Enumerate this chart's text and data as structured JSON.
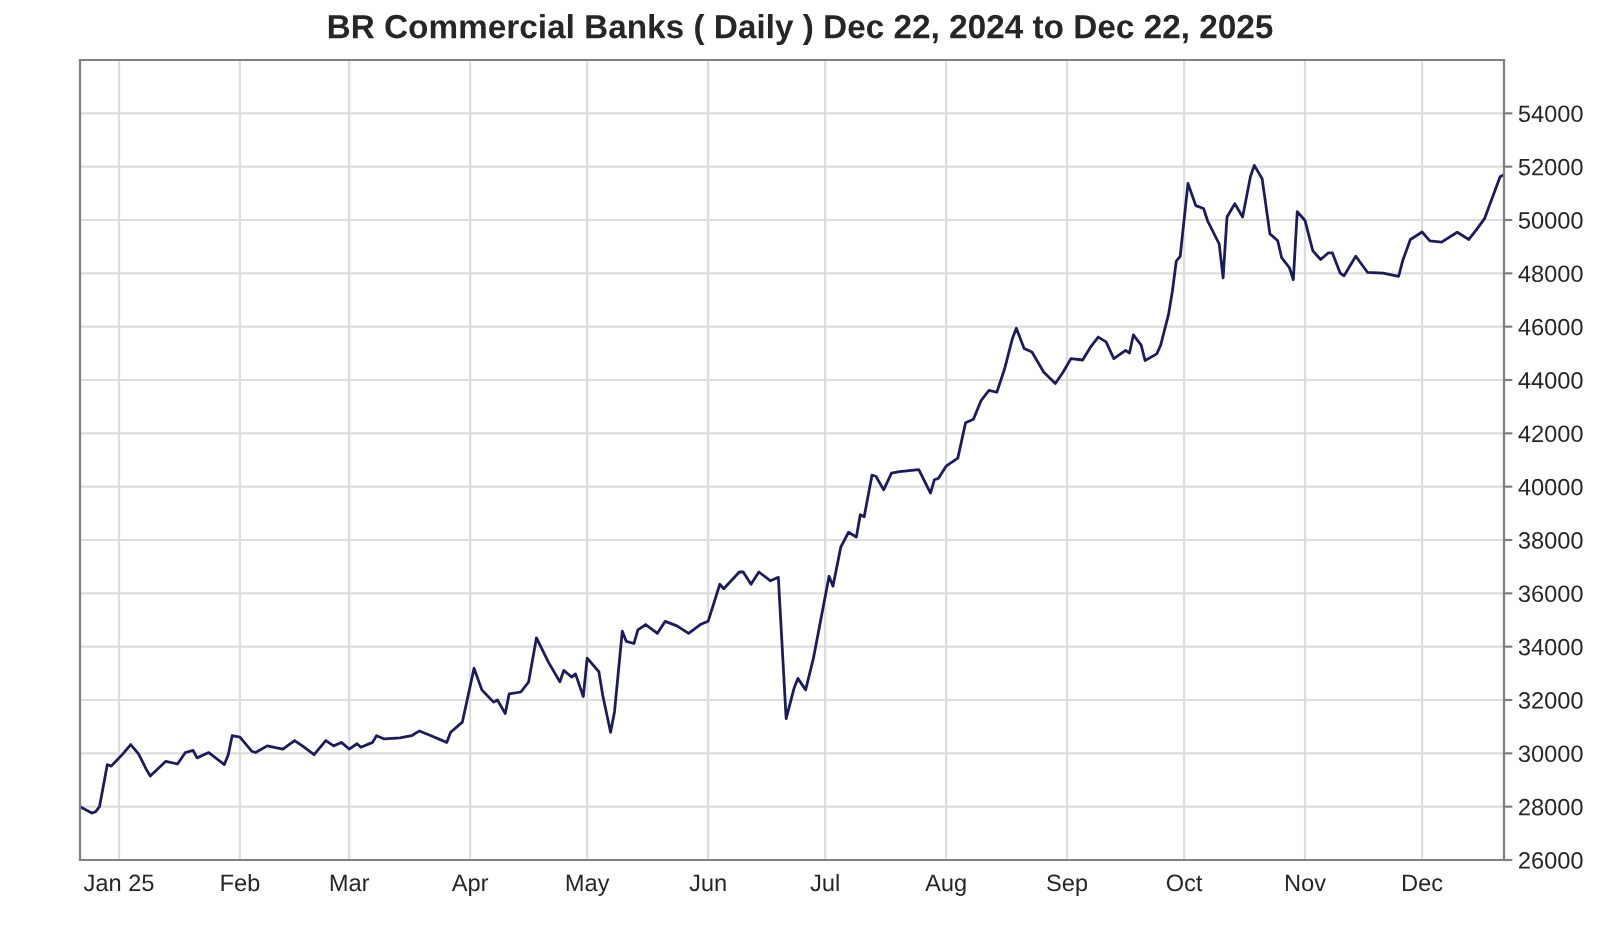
{
  "chart_data": {
    "type": "line",
    "title": "BR Commercial Banks ( Daily ) Dec 22, 2024 to Dec 22, 2025",
    "x": [
      "2024-12-22",
      "2024-12-25",
      "2024-12-26",
      "2024-12-27",
      "2024-12-29",
      "2024-12-30",
      "2025-01-02",
      "2025-01-04",
      "2025-01-06",
      "2025-01-08",
      "2025-01-09",
      "2025-01-13",
      "2025-01-16",
      "2025-01-18",
      "2025-01-20",
      "2025-01-21",
      "2025-01-24",
      "2025-01-28",
      "2025-01-29",
      "2025-01-30",
      "2025-02-01",
      "2025-02-04",
      "2025-02-05",
      "2025-02-08",
      "2025-02-12",
      "2025-02-15",
      "2025-02-17",
      "2025-02-20",
      "2025-02-23",
      "2025-02-25",
      "2025-02-27",
      "2025-03-01",
      "2025-03-03",
      "2025-03-04",
      "2025-03-07",
      "2025-03-08",
      "2025-03-10",
      "2025-03-14",
      "2025-03-17",
      "2025-03-19",
      "2025-03-22",
      "2025-03-26",
      "2025-03-27",
      "2025-03-30",
      "2025-04-02",
      "2025-04-04",
      "2025-04-07",
      "2025-04-08",
      "2025-04-10",
      "2025-04-11",
      "2025-04-14",
      "2025-04-16",
      "2025-04-18",
      "2025-04-21",
      "2025-04-24",
      "2025-04-25",
      "2025-04-27",
      "2025-04-28",
      "2025-04-30",
      "2025-05-01",
      "2025-05-04",
      "2025-05-05",
      "2025-05-07",
      "2025-05-08",
      "2025-05-10",
      "2025-05-11",
      "2025-05-13",
      "2025-05-14",
      "2025-05-16",
      "2025-05-19",
      "2025-05-21",
      "2025-05-24",
      "2025-05-27",
      "2025-05-30",
      "2025-06-01",
      "2025-06-04",
      "2025-06-05",
      "2025-06-09",
      "2025-06-10",
      "2025-06-12",
      "2025-06-14",
      "2025-06-17",
      "2025-06-19",
      "2025-06-21",
      "2025-06-23",
      "2025-06-24",
      "2025-06-26",
      "2025-06-28",
      "2025-07-02",
      "2025-07-03",
      "2025-07-05",
      "2025-07-07",
      "2025-07-09",
      "2025-07-10",
      "2025-07-11",
      "2025-07-13",
      "2025-07-14",
      "2025-07-16",
      "2025-07-18",
      "2025-07-20",
      "2025-07-22",
      "2025-07-25",
      "2025-07-28",
      "2025-07-29",
      "2025-07-30",
      "2025-08-01",
      "2025-08-04",
      "2025-08-06",
      "2025-08-08",
      "2025-08-10",
      "2025-08-12",
      "2025-08-14",
      "2025-08-16",
      "2025-08-18",
      "2025-08-19",
      "2025-08-21",
      "2025-08-23",
      "2025-08-26",
      "2025-08-29",
      "2025-08-31",
      "2025-09-02",
      "2025-09-05",
      "2025-09-07",
      "2025-09-09",
      "2025-09-11",
      "2025-09-13",
      "2025-09-16",
      "2025-09-17",
      "2025-09-18",
      "2025-09-20",
      "2025-09-21",
      "2025-09-24",
      "2025-09-25",
      "2025-09-27",
      "2025-09-28",
      "2025-09-29",
      "2025-09-30",
      "2025-10-02",
      "2025-10-04",
      "2025-10-06",
      "2025-10-07",
      "2025-10-10",
      "2025-10-11",
      "2025-10-12",
      "2025-10-14",
      "2025-10-16",
      "2025-10-18",
      "2025-10-19",
      "2025-10-21",
      "2025-10-23",
      "2025-10-25",
      "2025-10-26",
      "2025-10-28",
      "2025-10-29",
      "2025-10-30",
      "2025-11-01",
      "2025-11-03",
      "2025-11-05",
      "2025-11-07",
      "2025-11-08",
      "2025-11-10",
      "2025-11-11",
      "2025-11-14",
      "2025-11-17",
      "2025-11-21",
      "2025-11-25",
      "2025-11-26",
      "2025-11-28",
      "2025-12-01",
      "2025-12-03",
      "2025-12-06",
      "2025-12-10",
      "2025-12-13",
      "2025-12-15",
      "2025-12-17",
      "2025-12-21",
      "2025-12-22"
    ],
    "series": [
      {
        "color": "#1c1c5c",
        "values": [
          28000,
          27760,
          27810,
          28000,
          29580,
          29520,
          29980,
          30330,
          29980,
          29400,
          29150,
          29700,
          29600,
          30030,
          30110,
          29830,
          30030,
          29580,
          29950,
          30660,
          30610,
          30080,
          30030,
          30280,
          30160,
          30480,
          30280,
          29950,
          30480,
          30280,
          30410,
          30160,
          30360,
          30230,
          30410,
          30660,
          30540,
          30580,
          30660,
          30840,
          30660,
          30410,
          30790,
          31170,
          33190,
          32380,
          31920,
          32000,
          31490,
          32230,
          32300,
          32680,
          34330,
          33440,
          32680,
          33110,
          32860,
          32980,
          32130,
          33570,
          33060,
          32170,
          30790,
          31550,
          34580,
          34200,
          34120,
          34630,
          34830,
          34500,
          34950,
          34780,
          34500,
          34830,
          34950,
          36340,
          36170,
          36800,
          36800,
          36340,
          36800,
          36470,
          36600,
          31300,
          32430,
          32810,
          32380,
          33570,
          36640,
          36270,
          37730,
          38290,
          38110,
          38950,
          38870,
          40430,
          40390,
          39880,
          40510,
          40560,
          40590,
          40640,
          39760,
          40260,
          40310,
          40770,
          41070,
          42400,
          42530,
          43240,
          43610,
          43540,
          44420,
          45560,
          45940,
          45180,
          45050,
          44300,
          43870,
          44300,
          44800,
          44750,
          45230,
          45610,
          45430,
          44800,
          45110,
          45010,
          45690,
          45310,
          44730,
          44980,
          45310,
          46450,
          47330,
          48460,
          48640,
          51370,
          50540,
          50430,
          49980,
          49100,
          47830,
          50110,
          50610,
          50110,
          51620,
          52050,
          51550,
          49480,
          49220,
          48590,
          48210,
          47760,
          50310,
          49980,
          48840,
          48520,
          48770,
          48770,
          48010,
          47910,
          48640,
          48040,
          48010,
          47890,
          48460,
          49270,
          49550,
          49220,
          49170,
          49540,
          49270,
          49650,
          50050,
          51620,
          51700
        ]
      }
    ],
    "xlim": [
      "2024-12-22",
      "2025-12-22"
    ],
    "xticks": [
      {
        "value": "2025-01-01",
        "label": "Jan 25"
      },
      {
        "value": "2025-02-01",
        "label": "Feb"
      },
      {
        "value": "2025-03-01",
        "label": "Mar"
      },
      {
        "value": "2025-04-01",
        "label": "Apr"
      },
      {
        "value": "2025-05-01",
        "label": "May"
      },
      {
        "value": "2025-06-01",
        "label": "Jun"
      },
      {
        "value": "2025-07-01",
        "label": "Jul"
      },
      {
        "value": "2025-08-01",
        "label": "Aug"
      },
      {
        "value": "2025-09-01",
        "label": "Sep"
      },
      {
        "value": "2025-10-01",
        "label": "Oct"
      },
      {
        "value": "2025-11-01",
        "label": "Nov"
      },
      {
        "value": "2025-12-01",
        "label": "Dec"
      }
    ],
    "ylim": [
      26000,
      56000
    ],
    "yticks": [
      26000,
      28000,
      30000,
      32000,
      34000,
      36000,
      38000,
      40000,
      42000,
      44000,
      46000,
      48000,
      50000,
      52000,
      54000
    ],
    "grid": true
  }
}
